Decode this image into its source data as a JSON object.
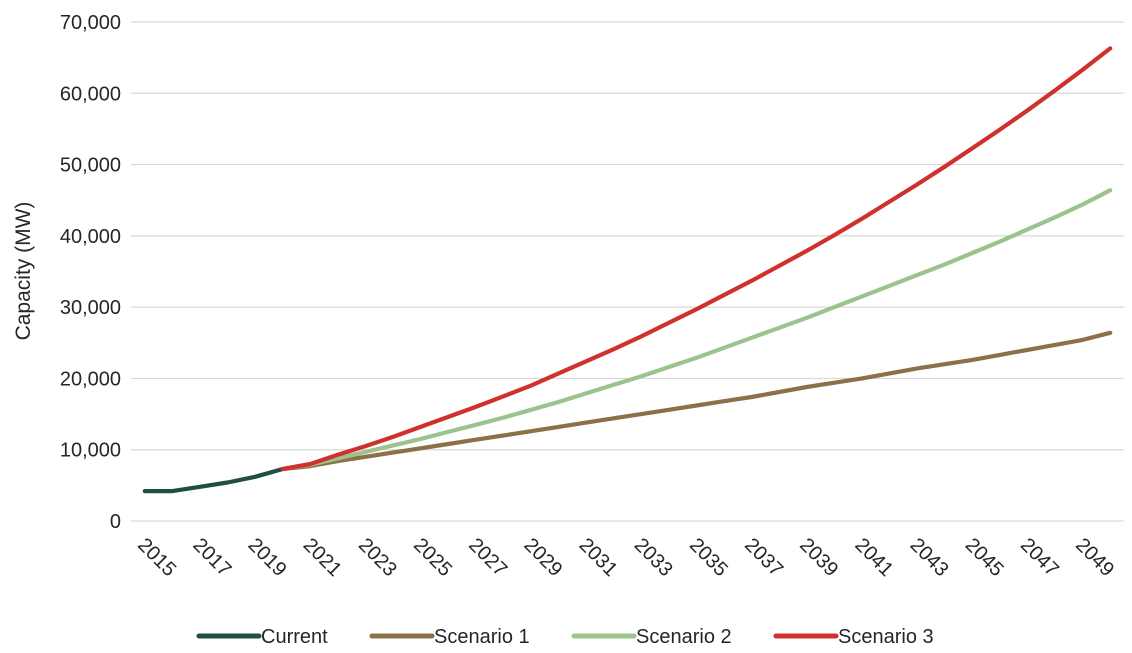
{
  "chart_data": {
    "type": "line",
    "title": "",
    "xlabel": "",
    "ylabel": "Capacity (MW)",
    "ylim": [
      0,
      70000
    ],
    "yticks": [
      0,
      10000,
      20000,
      30000,
      40000,
      50000,
      60000,
      70000
    ],
    "ytick_labels": [
      "0",
      "10,000",
      "20,000",
      "30,000",
      "40,000",
      "50,000",
      "60,000",
      "70,000"
    ],
    "x_tick_labels": [
      "2015",
      "2017",
      "2019",
      "2021",
      "2023",
      "2025",
      "2027",
      "2029",
      "2031",
      "2033",
      "2035",
      "2037",
      "2039",
      "2041",
      "2043",
      "2045",
      "2047",
      "2049"
    ],
    "grid": "horizontal",
    "legend_position": "bottom",
    "series": [
      {
        "name": "Current",
        "color": "#1f4e44",
        "x": [
          2015,
          2016,
          2017,
          2018,
          2019,
          2020
        ],
        "y": [
          4200,
          4200,
          4800,
          5400,
          6200,
          7300
        ]
      },
      {
        "name": "Scenario 1",
        "color": "#8c7148",
        "x": [
          2020,
          2021,
          2022,
          2023,
          2024,
          2025,
          2026,
          2027,
          2028,
          2029,
          2030,
          2031,
          2032,
          2033,
          2034,
          2035,
          2036,
          2037,
          2038,
          2039,
          2040,
          2041,
          2042,
          2043,
          2044,
          2045,
          2046,
          2047,
          2048,
          2049,
          2050
        ],
        "y": [
          7300,
          7700,
          8400,
          9000,
          9600,
          10200,
          10800,
          11400,
          12000,
          12600,
          13200,
          13800,
          14400,
          15000,
          15600,
          16200,
          16800,
          17400,
          18100,
          18800,
          19400,
          20000,
          20700,
          21400,
          22000,
          22600,
          23300,
          24000,
          24700,
          25400,
          26400
        ]
      },
      {
        "name": "Scenario 2",
        "color": "#9cc38e",
        "x": [
          2020,
          2021,
          2022,
          2023,
          2024,
          2025,
          2026,
          2027,
          2028,
          2029,
          2030,
          2031,
          2032,
          2033,
          2034,
          2035,
          2036,
          2037,
          2038,
          2039,
          2040,
          2041,
          2042,
          2043,
          2044,
          2045,
          2046,
          2047,
          2048,
          2049,
          2050
        ],
        "y": [
          7300,
          7900,
          8800,
          9700,
          10600,
          11500,
          12500,
          13500,
          14500,
          15600,
          16700,
          17900,
          19100,
          20300,
          21600,
          22900,
          24300,
          25700,
          27100,
          28500,
          30000,
          31500,
          33000,
          34500,
          36000,
          37600,
          39200,
          40900,
          42600,
          44400,
          46400
        ]
      },
      {
        "name": "Scenario 3",
        "color": "#d0312d",
        "x": [
          2020,
          2021,
          2022,
          2023,
          2024,
          2025,
          2026,
          2027,
          2028,
          2029,
          2030,
          2031,
          2032,
          2033,
          2034,
          2035,
          2036,
          2037,
          2038,
          2039,
          2040,
          2041,
          2042,
          2043,
          2044,
          2045,
          2046,
          2047,
          2048,
          2049,
          2050
        ],
        "y": [
          7300,
          8000,
          9300,
          10500,
          11800,
          13200,
          14600,
          16000,
          17500,
          19000,
          20700,
          22400,
          24100,
          25900,
          27800,
          29700,
          31700,
          33700,
          35800,
          37900,
          40100,
          42400,
          44800,
          47200,
          49700,
          52300,
          54900,
          57600,
          60400,
          63300,
          66300
        ]
      }
    ]
  }
}
